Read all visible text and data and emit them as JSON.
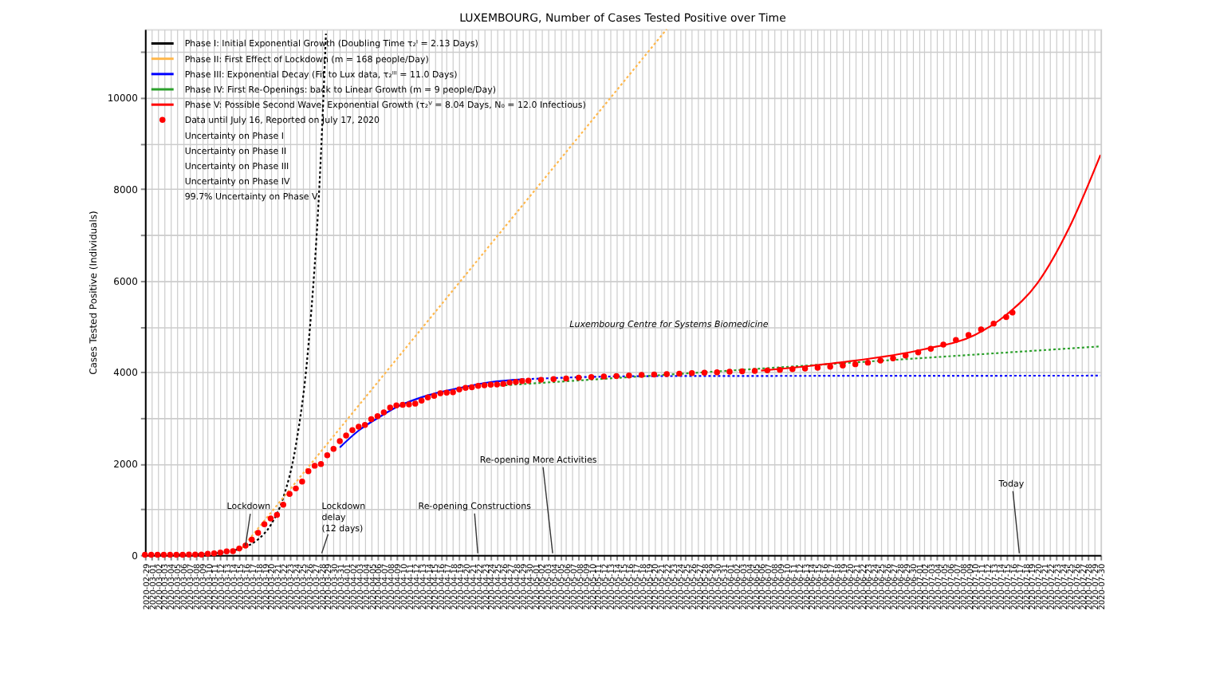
{
  "chart_data": {
    "type": "line",
    "title": "LUXEMBOURG, Number of Cases Tested Positive over Time",
    "ylabel": "Cases Tested Positive (Individuals)",
    "xlim": [
      "2020-02-29",
      "2020-07-30"
    ],
    "ylim": [
      0,
      11500
    ],
    "yticks": [
      0,
      {
        "value": 1000,
        "label": null
      },
      2000,
      {
        "value": 3000,
        "label": null
      },
      4000,
      {
        "value": 5000,
        "label": null
      },
      6000,
      {
        "value": 7000,
        "label": null
      },
      8000,
      {
        "value": 9000,
        "label": null
      },
      10000,
      {
        "value": 11000,
        "label": null
      }
    ],
    "xticks": [
      "2020-02-29",
      "2020-03-01",
      "2020-03-02",
      "2020-03-03",
      "2020-03-04",
      "2020-03-05",
      "2020-03-06",
      "2020-03-07",
      "2020-03-08",
      "2020-03-09",
      "2020-03-10",
      "2020-03-11",
      "2020-03-12",
      "2020-03-13",
      "2020-03-14",
      "2020-03-15",
      "2020-03-16",
      "2020-03-17",
      "2020-03-18",
      "2020-03-19",
      "2020-03-20",
      "2020-03-21",
      "2020-03-22",
      "2020-03-23",
      "2020-03-24",
      "2020-03-25",
      "2020-03-26",
      "2020-03-27",
      "2020-03-28",
      "2020-03-29",
      "2020-03-30",
      "2020-03-31",
      "2020-04-01",
      "2020-04-02",
      "2020-04-03",
      "2020-04-04",
      "2020-04-05",
      "2020-04-06",
      "2020-04-07",
      "2020-04-08",
      "2020-04-09",
      "2020-04-10",
      "2020-04-11",
      "2020-04-12",
      "2020-04-13",
      "2020-04-14",
      "2020-04-15",
      "2020-04-16",
      "2020-04-17",
      "2020-04-18",
      "2020-04-19",
      "2020-04-20",
      "2020-04-21",
      "2020-04-22",
      "2020-04-23",
      "2020-04-24",
      "2020-04-25",
      "2020-04-26",
      "2020-04-27",
      "2020-04-28",
      "2020-04-29",
      "2020-04-30",
      "2020-05-01",
      "2020-05-02",
      "2020-05-03",
      "2020-05-04",
      "2020-05-05",
      "2020-05-06",
      "2020-05-07",
      "2020-05-08",
      "2020-05-09",
      "2020-05-10",
      "2020-05-11",
      "2020-05-12",
      "2020-05-13",
      "2020-05-14",
      "2020-05-15",
      "2020-05-16",
      "2020-05-17",
      "2020-05-18",
      "2020-05-19",
      "2020-05-20",
      "2020-05-21",
      "2020-05-22",
      "2020-05-23",
      "2020-05-24",
      "2020-05-25",
      "2020-05-26",
      "2020-05-27",
      "2020-05-28",
      "2020-05-29",
      "2020-05-30",
      "2020-05-31",
      "2020-06-01",
      "2020-06-02",
      "2020-06-03",
      "2020-06-04",
      "2020-06-05",
      "2020-06-06",
      "2020-06-07",
      "2020-06-08",
      "2020-06-09",
      "2020-06-10",
      "2020-06-11",
      "2020-06-12",
      "2020-06-13",
      "2020-06-14",
      "2020-06-15",
      "2020-06-16",
      "2020-06-17",
      "2020-06-18",
      "2020-06-19",
      "2020-06-20",
      "2020-06-21",
      "2020-06-22",
      "2020-06-23",
      "2020-06-24",
      "2020-06-25",
      "2020-06-26",
      "2020-06-27",
      "2020-06-28",
      "2020-06-29",
      "2020-06-30",
      "2020-07-01",
      "2020-07-02",
      "2020-07-03",
      "2020-07-04",
      "2020-07-05",
      "2020-07-06",
      "2020-07-07",
      "2020-07-08",
      "2020-07-09",
      "2020-07-10",
      "2020-07-11",
      "2020-07-12",
      "2020-07-13",
      "2020-07-14",
      "2020-07-15",
      "2020-07-16",
      "2020-07-17",
      "2020-07-18",
      "2020-07-19",
      "2020-07-20",
      "2020-07-21",
      "2020-07-22",
      "2020-07-23",
      "2020-07-24",
      "2020-07-25",
      "2020-07-26",
      "2020-07-27",
      "2020-07-28",
      "2020-07-29",
      "2020-07-30"
    ],
    "grid": true,
    "legend": "top left",
    "series": [
      {
        "name": "Phase I: Initial Exponential Growth (Doubling Time τ₂ᴵ = 2.13 Days)",
        "color": "#000000",
        "line_style": "dotted",
        "x": [
          "2020-02-29",
          "2020-03-05",
          "2020-03-10",
          "2020-03-14",
          "2020-03-16",
          "2020-03-18",
          "2020-03-20",
          "2020-03-22",
          "2020-03-24",
          "2020-03-26",
          "2020-03-28",
          "2020-03-28T19:00"
        ],
        "values": [
          1,
          5,
          25,
          92,
          177,
          339,
          651,
          1250,
          2390,
          4570,
          8770,
          11400
        ]
      },
      {
        "name": "Phase II: First Effect of Lockdown (m = 168 people/Day)",
        "color": "#ffb84d",
        "line_style": "dotted",
        "x": [
          "2020-03-15",
          "2020-05-22"
        ],
        "values": [
          76,
          11500
        ]
      },
      {
        "name": "Phase III: Exponential Decay (Fit to Lux data, τ₂ᴵᴵᴵ = 11.0 Days)",
        "color": "#0000ff",
        "line_style": "solid",
        "x": [
          "2020-03-31",
          "2020-04-03",
          "2020-04-06",
          "2020-04-09",
          "2020-04-14",
          "2020-04-19",
          "2020-04-24",
          "2020-04-29"
        ],
        "values": [
          2350,
          2720,
          2990,
          3230,
          3490,
          3650,
          3780,
          3840
        ]
      },
      {
        "color": "#0000ff",
        "line_style": "dotted",
        "x": [
          "2020-04-29",
          "2020-05-09",
          "2020-05-19",
          "2020-07-30"
        ],
        "values": [
          3840,
          3890,
          3910,
          3920
        ]
      },
      {
        "name": "Phase IV: First Re-Openings: back to Linear Growth (m = 9 people/Day)",
        "color": "#2ca02c",
        "line_style": "dotted",
        "x": [
          "2020-04-24",
          "2020-07-30"
        ],
        "values": [
          3690,
          4560
        ]
      },
      {
        "name": "Phase V: Possible Second Wave, Exponential Growth (τ₂ⱽ = 8.04 Days, N₀ = 12.0 Infectious)",
        "color": "#ff0000",
        "line_style": "solid",
        "x": [
          "2020-06-06",
          "2020-06-18",
          "2020-07-02",
          "2020-07-10",
          "2020-07-15",
          "2020-07-20",
          "2020-07-25",
          "2020-07-30"
        ],
        "values": [
          4030,
          4200,
          4500,
          4810,
          5250,
          5950,
          7150,
          8750
        ]
      },
      {
        "name": "Data until July 16, Reported on July 17, 2020",
        "type": "scatter",
        "marker": "circle",
        "color": "#ff0000",
        "x": [
          "2020-02-29",
          "2020-03-01",
          "2020-03-02",
          "2020-03-03",
          "2020-03-04",
          "2020-03-05",
          "2020-03-06",
          "2020-03-07",
          "2020-03-08",
          "2020-03-09",
          "2020-03-10",
          "2020-03-11",
          "2020-03-12",
          "2020-03-13",
          "2020-03-14",
          "2020-03-15",
          "2020-03-16",
          "2020-03-17",
          "2020-03-18",
          "2020-03-19",
          "2020-03-20",
          "2020-03-21",
          "2020-03-22",
          "2020-03-23",
          "2020-03-24",
          "2020-03-25",
          "2020-03-26",
          "2020-03-27",
          "2020-03-28",
          "2020-03-29",
          "2020-03-30",
          "2020-03-31",
          "2020-04-01",
          "2020-04-02",
          "2020-04-03",
          "2020-04-04",
          "2020-04-05",
          "2020-04-06",
          "2020-04-07",
          "2020-04-08",
          "2020-04-09",
          "2020-04-10",
          "2020-04-11",
          "2020-04-12",
          "2020-04-13",
          "2020-04-14",
          "2020-04-15",
          "2020-04-16",
          "2020-04-17",
          "2020-04-18",
          "2020-04-19",
          "2020-04-20",
          "2020-04-21",
          "2020-04-22",
          "2020-04-23",
          "2020-04-24",
          "2020-04-25",
          "2020-04-26",
          "2020-04-27",
          "2020-04-28",
          "2020-04-29",
          "2020-04-30",
          "2020-05-02",
          "2020-05-04",
          "2020-05-06",
          "2020-05-08",
          "2020-05-10",
          "2020-05-12",
          "2020-05-14",
          "2020-05-16",
          "2020-05-18",
          "2020-05-20",
          "2020-05-22",
          "2020-05-24",
          "2020-05-26",
          "2020-05-28",
          "2020-05-30",
          "2020-06-01",
          "2020-06-03",
          "2020-06-05",
          "2020-06-07",
          "2020-06-09",
          "2020-06-11",
          "2020-06-13",
          "2020-06-15",
          "2020-06-17",
          "2020-06-19",
          "2020-06-21",
          "2020-06-23",
          "2020-06-25",
          "2020-06-27",
          "2020-06-29",
          "2020-07-01",
          "2020-07-03",
          "2020-07-05",
          "2020-07-07",
          "2020-07-09",
          "2020-07-11",
          "2020-07-13",
          "2020-07-15",
          "2020-07-16"
        ],
        "values": [
          1,
          1,
          2,
          2,
          3,
          3,
          4,
          5,
          5,
          7,
          26,
          34,
          51,
          77,
          81,
          140,
          203,
          335,
          484,
          670,
          798,
          875,
          1099,
          1333,
          1453,
          1605,
          1831,
          1950,
          1988,
          2178,
          2319,
          2487,
          2612,
          2729,
          2804,
          2843,
          2970,
          3034,
          3115,
          3223,
          3270,
          3281,
          3292,
          3307,
          3373,
          3444,
          3480,
          3537,
          3550,
          3558,
          3618,
          3654,
          3665,
          3695,
          3711,
          3723,
          3729,
          3741,
          3769,
          3784,
          3802,
          3812,
          3830,
          3845,
          3860,
          3875,
          3888,
          3900,
          3912,
          3925,
          3935,
          3945,
          3955,
          3965,
          3975,
          3985,
          3995,
          4005,
          4015,
          4025,
          4035,
          4048,
          4062,
          4078,
          4095,
          4115,
          4140,
          4170,
          4205,
          4250,
          4300,
          4360,
          4430,
          4510,
          4600,
          4700,
          4810,
          4930,
          5060,
          5200,
          5300
        ]
      }
    ],
    "annotations": [
      "Uncertainty on Phase I",
      "Uncertainty on Phase II",
      "Uncertainty on Phase III",
      "Uncertainty on Phase IV",
      "99.7% Uncertainty on Phase V",
      {
        "text": "Lockdown",
        "x": "2020-03-16",
        "y": 203
      },
      "Lockdown\ndelay\n(12 days)",
      "Re-opening Constructions",
      "Re-opening More Activities",
      "Today",
      "Luxembourg Centre for Systems Biomedicine"
    ]
  }
}
